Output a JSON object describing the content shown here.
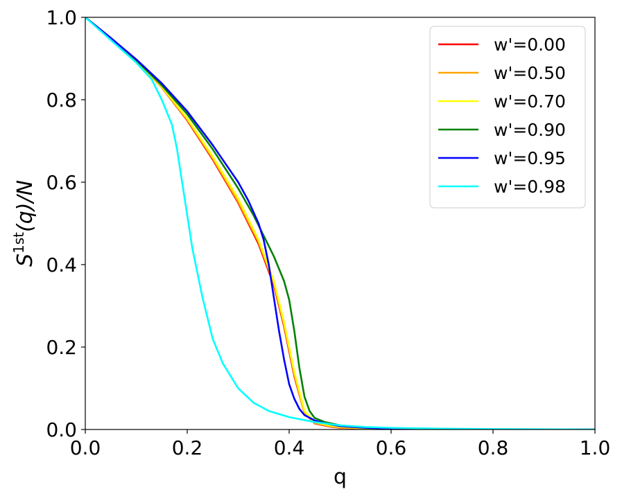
{
  "chart_data": {
    "type": "line",
    "xlabel": "q",
    "ylabel_base": "S",
    "ylabel_sup": "1st",
    "ylabel_tail": "(q)/N",
    "xlim": [
      0.0,
      1.0
    ],
    "ylim": [
      0.0,
      1.0
    ],
    "xticks": [
      0.0,
      0.2,
      0.4,
      0.6,
      0.8,
      1.0
    ],
    "yticks": [
      0.0,
      0.2,
      0.4,
      0.6,
      0.8,
      1.0
    ],
    "xtick_labels": [
      "0.0",
      "0.2",
      "0.4",
      "0.6",
      "0.8",
      "1.0"
    ],
    "ytick_labels": [
      "0.0",
      "0.2",
      "0.4",
      "0.6",
      "0.8",
      "1.0"
    ],
    "grid": false,
    "legend_position": "top-right",
    "series": [
      {
        "name": "w'=0.00",
        "color": "#ff0000",
        "x": [
          0.0,
          0.05,
          0.1,
          0.15,
          0.2,
          0.25,
          0.3,
          0.34,
          0.37,
          0.39,
          0.41,
          0.43,
          0.45,
          0.48,
          0.5,
          0.55,
          0.6,
          0.7,
          0.8,
          1.0
        ],
        "y": [
          1.0,
          0.95,
          0.895,
          0.83,
          0.75,
          0.655,
          0.55,
          0.45,
          0.35,
          0.25,
          0.13,
          0.04,
          0.015,
          0.007,
          0.004,
          0.002,
          0.001,
          0.0,
          0.0,
          0.0
        ]
      },
      {
        "name": "w'=0.50",
        "color": "#ffa500",
        "x": [
          0.0,
          0.05,
          0.1,
          0.15,
          0.2,
          0.25,
          0.3,
          0.34,
          0.37,
          0.39,
          0.41,
          0.43,
          0.45,
          0.48,
          0.5,
          0.55,
          0.6,
          0.7,
          0.8,
          1.0
        ],
        "y": [
          1.0,
          0.95,
          0.895,
          0.83,
          0.752,
          0.658,
          0.553,
          0.455,
          0.355,
          0.255,
          0.135,
          0.04,
          0.016,
          0.008,
          0.005,
          0.002,
          0.001,
          0.0,
          0.0,
          0.0
        ]
      },
      {
        "name": "w'=0.70",
        "color": "#ffff00",
        "x": [
          0.0,
          0.05,
          0.1,
          0.15,
          0.2,
          0.25,
          0.3,
          0.34,
          0.37,
          0.39,
          0.41,
          0.43,
          0.45,
          0.48,
          0.5,
          0.55,
          0.6,
          0.7,
          0.8,
          1.0
        ],
        "y": [
          1.0,
          0.95,
          0.896,
          0.832,
          0.755,
          0.662,
          0.56,
          0.46,
          0.36,
          0.26,
          0.14,
          0.045,
          0.018,
          0.009,
          0.006,
          0.003,
          0.001,
          0.0,
          0.0,
          0.0
        ]
      },
      {
        "name": "w'=0.90",
        "color": "#008000",
        "x": [
          0.0,
          0.05,
          0.1,
          0.15,
          0.2,
          0.25,
          0.3,
          0.33,
          0.35,
          0.37,
          0.39,
          0.4,
          0.41,
          0.42,
          0.43,
          0.44,
          0.45,
          0.47,
          0.5,
          0.55,
          0.6,
          0.7,
          0.8,
          1.0
        ],
        "y": [
          1.0,
          0.95,
          0.896,
          0.835,
          0.765,
          0.68,
          0.585,
          0.52,
          0.47,
          0.42,
          0.36,
          0.315,
          0.24,
          0.15,
          0.08,
          0.045,
          0.028,
          0.018,
          0.01,
          0.005,
          0.002,
          0.001,
          0.0,
          0.0
        ]
      },
      {
        "name": "w'=0.95",
        "color": "#0000ff",
        "x": [
          0.0,
          0.05,
          0.1,
          0.15,
          0.2,
          0.25,
          0.3,
          0.32,
          0.34,
          0.35,
          0.36,
          0.37,
          0.38,
          0.39,
          0.4,
          0.41,
          0.42,
          0.43,
          0.45,
          0.47,
          0.5,
          0.55,
          0.6,
          0.7,
          0.8,
          1.0
        ],
        "y": [
          1.0,
          0.95,
          0.898,
          0.84,
          0.772,
          0.69,
          0.6,
          0.555,
          0.5,
          0.46,
          0.4,
          0.32,
          0.24,
          0.17,
          0.11,
          0.075,
          0.05,
          0.035,
          0.022,
          0.015,
          0.008,
          0.004,
          0.002,
          0.001,
          0.0,
          0.0
        ]
      },
      {
        "name": "w'=0.98",
        "color": "#00ffff",
        "x": [
          0.0,
          0.05,
          0.1,
          0.13,
          0.15,
          0.17,
          0.18,
          0.19,
          0.2,
          0.21,
          0.22,
          0.23,
          0.24,
          0.25,
          0.27,
          0.3,
          0.33,
          0.36,
          0.4,
          0.45,
          0.5,
          0.55,
          0.6,
          0.7,
          0.8,
          1.0
        ],
        "y": [
          1.0,
          0.945,
          0.89,
          0.85,
          0.8,
          0.74,
          0.68,
          0.6,
          0.52,
          0.44,
          0.38,
          0.32,
          0.27,
          0.22,
          0.16,
          0.1,
          0.065,
          0.045,
          0.03,
          0.018,
          0.01,
          0.006,
          0.004,
          0.002,
          0.001,
          0.0
        ]
      }
    ]
  }
}
